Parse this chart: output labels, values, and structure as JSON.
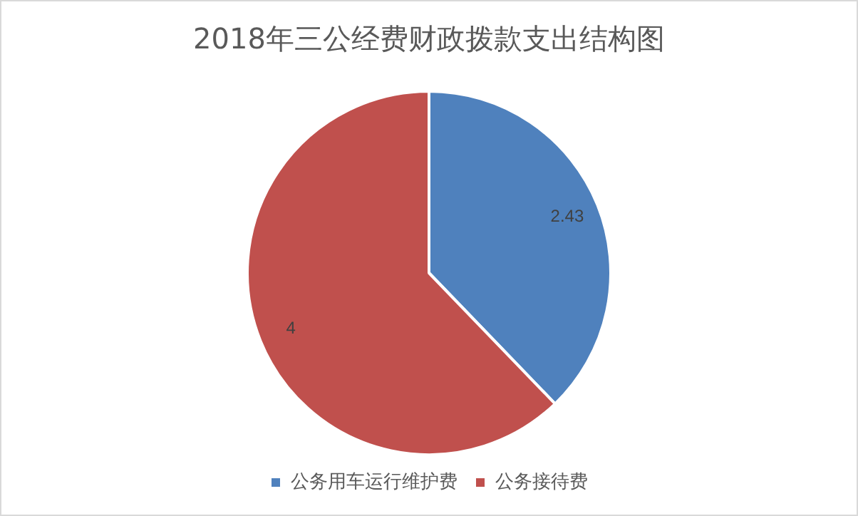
{
  "chart_data": {
    "type": "pie",
    "title": "2018年三公经费财政拨款支出结构图",
    "categories": [
      "公务用车运行维护费",
      "公务接待费"
    ],
    "values": [
      2.43,
      4
    ],
    "colors": [
      "#4f81bd",
      "#c0504d"
    ],
    "data_labels": true,
    "legend": "bottom"
  }
}
